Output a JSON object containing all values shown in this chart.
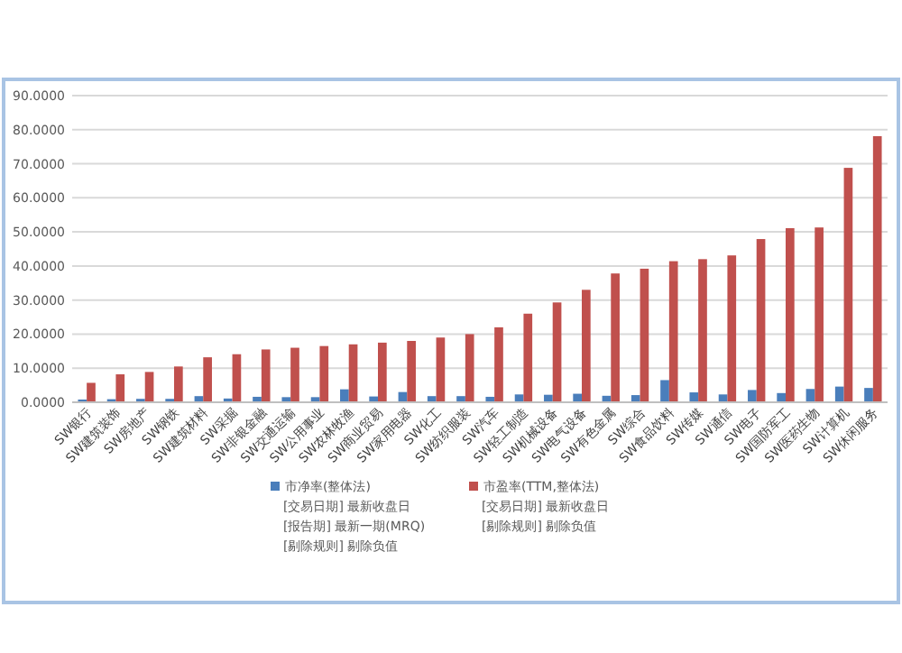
{
  "chart_data": {
    "type": "bar",
    "categories": [
      "SW银行",
      "SW建筑装饰",
      "SW房地产",
      "SW钢铁",
      "SW建筑材料",
      "SW采掘",
      "SW非银金融",
      "SW交通运输",
      "SW公用事业",
      "SW农林牧渔",
      "SW商业贸易",
      "SW家用电器",
      "SW化工",
      "SW纺织服装",
      "SW汽车",
      "SW轻工制造",
      "SW机械设备",
      "SW电气设备",
      "SW有色金属",
      "SW综合",
      "SW食品饮料",
      "SW传媒",
      "SW通信",
      "SW电子",
      "SW国防军工",
      "SW医药生物",
      "SW计算机",
      "SW休闲服务"
    ],
    "series": [
      {
        "name": "市净率(整体法)\n[交易日期] 最新收盘日\n[报告期] 最新一期(MRQ)\n[剔除规则] 剔除负值",
        "color": "#4a7ebb",
        "values": [
          0.8,
          0.9,
          1.0,
          1.0,
          1.8,
          1.1,
          1.6,
          1.5,
          1.5,
          3.8,
          1.7,
          3.0,
          1.8,
          1.8,
          1.6,
          2.3,
          2.2,
          2.5,
          1.9,
          2.1,
          6.5,
          2.9,
          2.3,
          3.6,
          2.7,
          3.9,
          4.6,
          4.2
        ]
      },
      {
        "name": "市盈率(TTM,整体法)\n[交易日期] 最新收盘日\n[剔除规则] 剔除负值",
        "color": "#c0504d",
        "values": [
          5.7,
          8.2,
          8.9,
          10.5,
          13.2,
          14.1,
          15.5,
          16,
          16.5,
          17,
          17.5,
          18,
          19,
          20,
          22,
          26,
          29.3,
          33,
          37.8,
          39.2,
          41.4,
          42,
          43.1,
          47.9,
          51.1,
          51.3,
          68.8,
          78.1
        ]
      }
    ],
    "ylim": [
      0,
      90
    ],
    "yticks": [
      {
        "value": 0,
        "label": "0.0000"
      },
      {
        "value": 10,
        "label": "10.0000"
      },
      {
        "value": 20,
        "label": "20.0000"
      },
      {
        "value": 30,
        "label": "30.0000"
      },
      {
        "value": 40,
        "label": "40.0000"
      },
      {
        "value": 50,
        "label": "50.0000"
      },
      {
        "value": 60,
        "label": "60.0000"
      },
      {
        "value": 70,
        "label": "70.0000"
      },
      {
        "value": 80,
        "label": "80.0000"
      },
      {
        "value": 90,
        "label": "90.0000"
      }
    ],
    "grid": "y",
    "legend": "bottom"
  }
}
